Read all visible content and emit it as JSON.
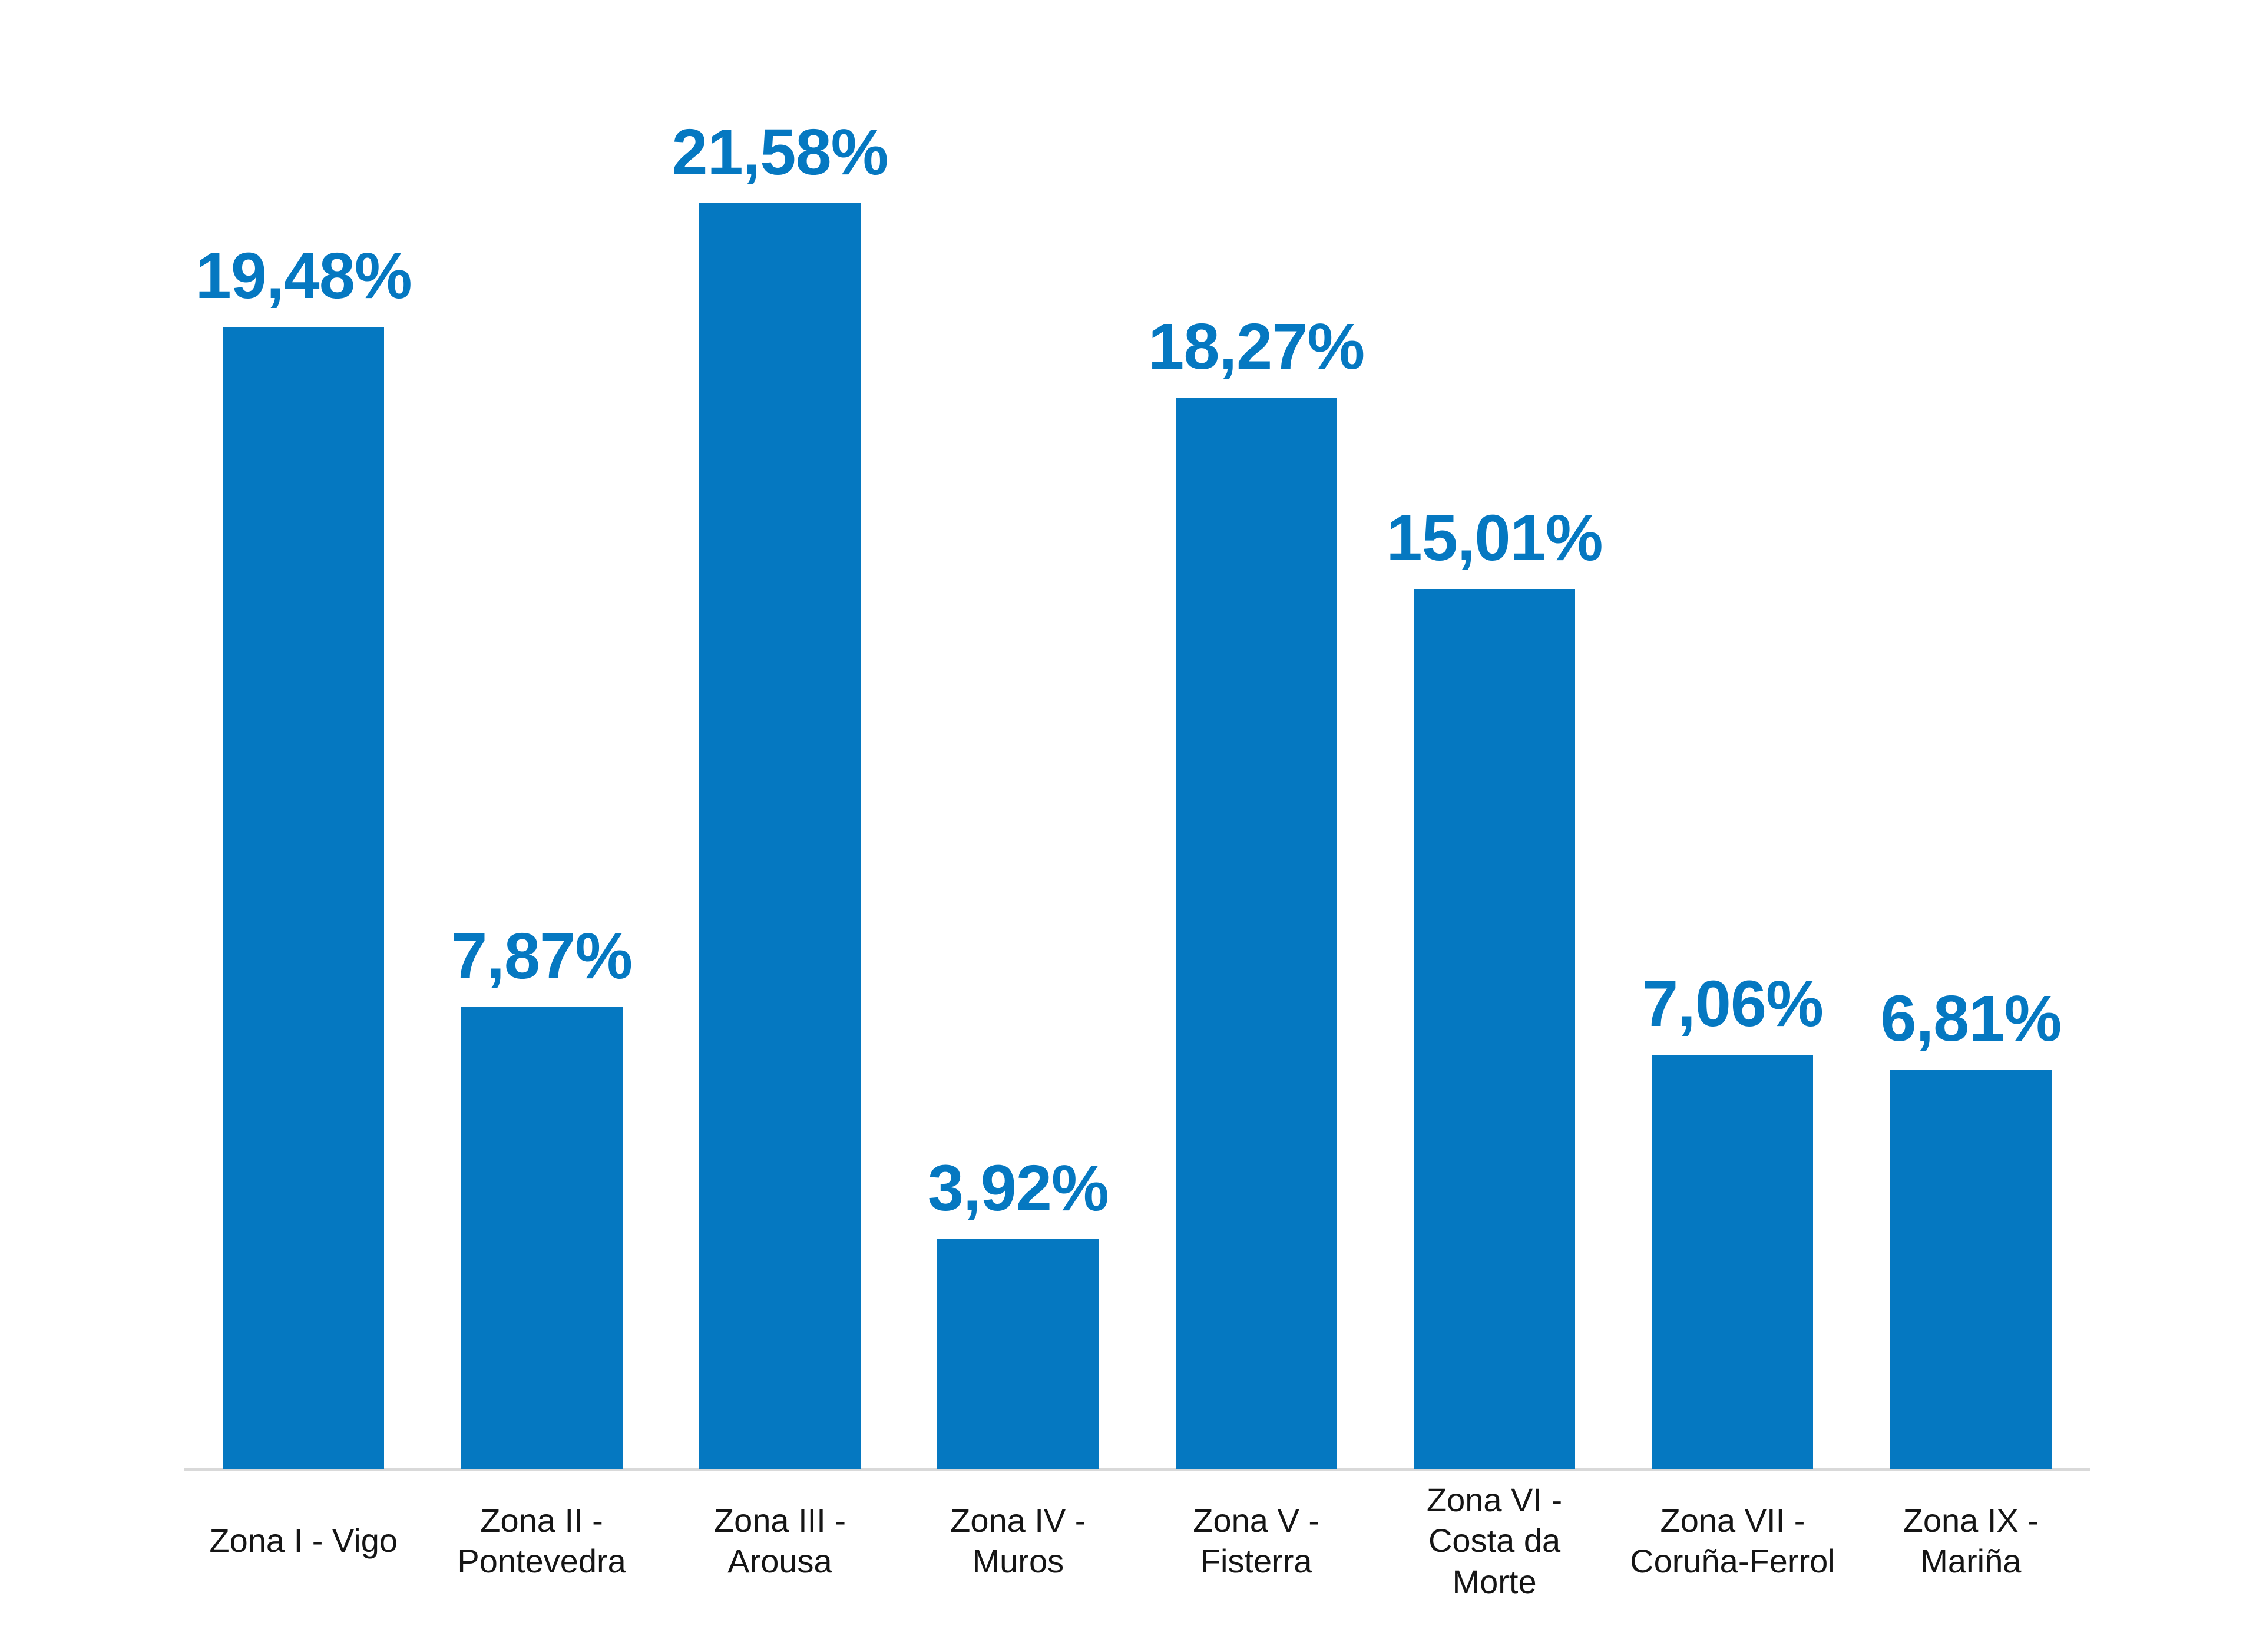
{
  "chart_data": {
    "type": "bar",
    "title": "",
    "xlabel": "",
    "ylabel": "",
    "categories": [
      "Zona I - Vigo",
      "Zona II - Pontevedra",
      "Zona III - Arousa",
      "Zona IV - Muros",
      "Zona V - Fisterra",
      "Zona VI - Costa da Morte",
      "Zona VII - Coruña-Ferrol",
      "Zona IX - Mariña"
    ],
    "category_lines": [
      [
        "Zona I - Vigo"
      ],
      [
        "Zona II -",
        "Pontevedra"
      ],
      [
        "Zona III -",
        "Arousa"
      ],
      [
        "Zona IV -",
        "Muros"
      ],
      [
        "Zona V -",
        "Fisterra"
      ],
      [
        "Zona VI -",
        "Costa da",
        "Morte"
      ],
      [
        "Zona VII -",
        "Coruña-Ferrol"
      ],
      [
        "Zona IX -",
        "Mariña"
      ]
    ],
    "values": [
      19.48,
      7.87,
      21.58,
      3.92,
      18.27,
      15.01,
      7.06,
      6.81
    ],
    "value_labels": [
      "19,48%",
      "7,87%",
      "21,58%",
      "3,92%",
      "18,27%",
      "15,01%",
      "7,06%",
      "6,81%"
    ],
    "ylim": [
      0,
      25
    ],
    "grid": false,
    "legend": false,
    "y_axis_visible": false,
    "data_labels_position": "above-bars"
  },
  "colors": {
    "bar": "#0578c1",
    "value_label": "#0578c1",
    "axis_line": "#d9d9d9",
    "category_label": "#151515",
    "background": "#ffffff"
  }
}
